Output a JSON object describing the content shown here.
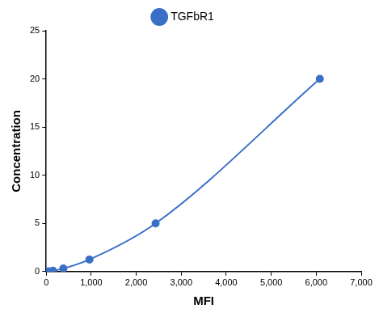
{
  "chart_data": {
    "type": "line",
    "x_label": "MFI",
    "y_label": "Concentration",
    "series": [
      {
        "name": "TGFbR1",
        "color": "#3a6fc8",
        "marker": "circle",
        "x": [
          20,
          60,
          150,
          380,
          960,
          2430,
          6080
        ],
        "values": [
          0,
          0.02,
          0.08,
          0.31,
          1.25,
          5,
          20
        ]
      }
    ],
    "xlim": [
      0,
      7000
    ],
    "xticks": [
      0,
      1000,
      2000,
      3000,
      4000,
      5000,
      6000,
      7000
    ],
    "ylim": [
      0,
      25
    ],
    "yticks": [
      0,
      5,
      10,
      15,
      20,
      25
    ],
    "grid": false,
    "legend": "top"
  }
}
